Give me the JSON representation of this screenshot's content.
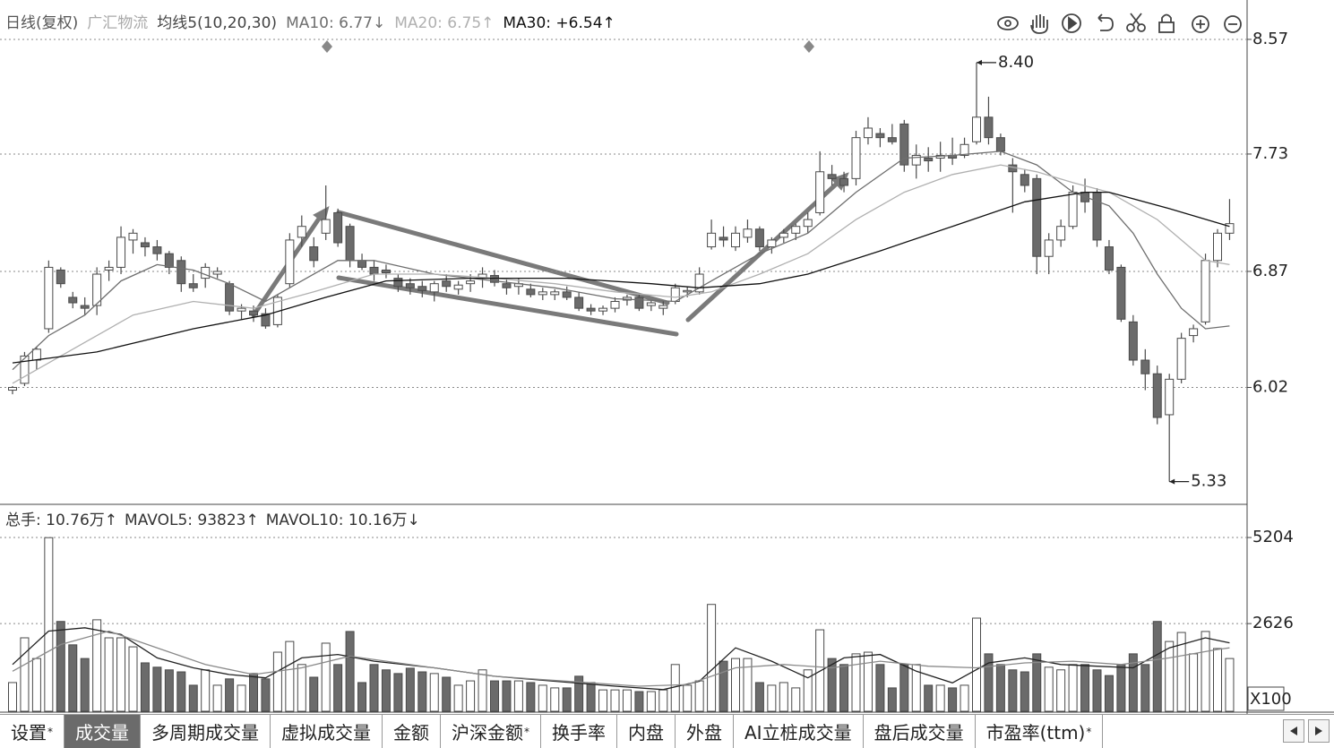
{
  "chart_data": [
    {
      "type": "candlestick",
      "title": "日线(复权)",
      "subtitle": "广汇物流",
      "ma_label": "均线5(10,20,30)",
      "open": [
        6.0,
        6.05,
        6.22,
        6.45,
        6.88,
        6.68,
        6.62,
        6.62,
        6.88,
        6.9,
        7.1,
        7.08,
        7.05,
        7.0,
        6.95,
        6.78,
        6.82,
        6.85,
        6.78,
        6.58,
        6.58,
        6.56,
        6.48,
        6.78,
        7.12,
        7.05,
        7.15,
        7.3,
        7.2,
        6.95,
        6.9,
        6.88,
        6.82,
        6.78,
        6.76,
        6.72,
        6.8,
        6.74,
        6.78,
        6.82,
        6.84,
        6.78,
        6.76,
        6.74,
        6.7,
        6.7,
        6.72,
        6.68,
        6.6,
        6.58,
        6.6,
        6.66,
        6.68,
        6.62,
        6.6,
        6.65,
        6.72,
        6.72,
        7.05,
        7.12,
        7.05,
        7.12,
        7.18,
        7.05,
        7.12,
        7.15,
        7.2,
        7.3,
        7.58,
        7.55,
        7.55,
        7.85,
        7.88,
        7.85,
        7.95,
        7.65,
        7.7,
        7.7,
        7.72,
        7.72,
        7.82,
        8.0,
        7.85,
        7.65,
        7.58,
        7.55,
        6.98,
        7.1,
        7.2,
        7.45,
        7.45,
        7.05,
        6.9,
        6.5,
        6.22,
        6.12,
        5.82,
        6.08,
        6.4,
        6.5,
        6.95,
        7.15
      ],
      "high": [
        6.03,
        6.28,
        6.32,
        6.95,
        6.9,
        6.72,
        6.68,
        6.9,
        6.95,
        7.2,
        7.18,
        7.12,
        7.1,
        7.02,
        6.98,
        6.85,
        6.93,
        6.9,
        6.8,
        6.63,
        6.62,
        6.6,
        6.7,
        7.15,
        7.28,
        7.12,
        7.5,
        7.33,
        7.22,
        7.0,
        6.95,
        6.92,
        6.85,
        6.82,
        6.8,
        6.8,
        6.85,
        6.8,
        6.85,
        6.9,
        6.88,
        6.82,
        6.82,
        6.78,
        6.75,
        6.74,
        6.76,
        6.72,
        6.63,
        6.62,
        6.68,
        6.7,
        6.7,
        6.66,
        6.65,
        6.78,
        6.76,
        6.9,
        7.25,
        7.2,
        7.2,
        7.25,
        7.2,
        7.12,
        7.18,
        7.22,
        7.3,
        7.75,
        7.65,
        7.6,
        7.9,
        8.0,
        7.92,
        7.95,
        7.98,
        7.8,
        7.78,
        7.82,
        7.85,
        7.85,
        8.4,
        8.15,
        7.88,
        7.7,
        7.62,
        7.58,
        7.15,
        7.25,
        7.5,
        7.55,
        7.48,
        7.1,
        6.92,
        6.55,
        6.3,
        6.18,
        6.12,
        6.42,
        6.48,
        7.0,
        7.18,
        7.4
      ],
      "low": [
        5.97,
        6.03,
        6.15,
        6.42,
        6.75,
        6.6,
        6.55,
        6.55,
        6.8,
        6.85,
        7.0,
        6.98,
        6.95,
        6.85,
        6.72,
        6.72,
        6.75,
        6.82,
        6.55,
        6.52,
        6.5,
        6.45,
        6.46,
        6.75,
        7.05,
        6.9,
        7.1,
        7.05,
        6.9,
        6.88,
        6.8,
        6.82,
        6.72,
        6.7,
        6.68,
        6.65,
        6.72,
        6.7,
        6.72,
        6.75,
        6.76,
        6.7,
        6.7,
        6.68,
        6.66,
        6.66,
        6.66,
        6.58,
        6.55,
        6.55,
        6.57,
        6.62,
        6.58,
        6.58,
        6.55,
        6.63,
        6.68,
        6.7,
        7.03,
        7.05,
        7.02,
        7.08,
        7.02,
        7.0,
        7.08,
        7.1,
        7.15,
        7.28,
        7.5,
        7.45,
        7.5,
        7.8,
        7.78,
        7.8,
        7.6,
        7.55,
        7.6,
        7.6,
        7.65,
        7.7,
        7.8,
        7.8,
        7.72,
        7.3,
        7.45,
        6.85,
        6.85,
        7.05,
        7.18,
        7.3,
        7.05,
        6.85,
        6.5,
        6.18,
        6.0,
        5.75,
        5.33,
        6.05,
        6.35,
        6.48,
        6.9,
        7.1
      ],
      "close": [
        6.02,
        6.25,
        6.3,
        6.9,
        6.78,
        6.64,
        6.6,
        6.85,
        6.9,
        7.12,
        7.15,
        7.05,
        7.0,
        6.9,
        6.78,
        6.75,
        6.9,
        6.87,
        6.58,
        6.6,
        6.55,
        6.47,
        6.68,
        7.1,
        7.2,
        6.95,
        7.25,
        7.08,
        6.95,
        6.9,
        6.85,
        6.86,
        6.76,
        6.75,
        6.73,
        6.78,
        6.76,
        6.77,
        6.8,
        6.85,
        6.79,
        6.75,
        6.78,
        6.7,
        6.72,
        6.72,
        6.68,
        6.6,
        6.58,
        6.6,
        6.65,
        6.68,
        6.6,
        6.64,
        6.62,
        6.75,
        6.73,
        6.85,
        7.15,
        7.1,
        7.15,
        7.18,
        7.05,
        7.1,
        7.15,
        7.2,
        7.25,
        7.6,
        7.55,
        7.5,
        7.85,
        7.92,
        7.85,
        7.82,
        7.65,
        7.72,
        7.68,
        7.72,
        7.7,
        7.8,
        8.0,
        7.85,
        7.75,
        7.6,
        7.5,
        6.98,
        7.1,
        7.2,
        7.45,
        7.38,
        7.1,
        6.88,
        6.52,
        6.22,
        6.12,
        5.8,
        6.08,
        6.38,
        6.45,
        6.95,
        7.15,
        7.22
      ],
      "up_color": "#ffffff",
      "down_color": "#6b6b6b",
      "edge_color": "#4a4a4a",
      "ylim": [
        5.17,
        8.806
      ],
      "yticks": [
        6.02,
        6.87,
        7.73,
        8.57
      ],
      "grid": true,
      "series": [
        {
          "name": "MA10: 6.77↓",
          "color": "#6e6e6e",
          "x": [
            0,
            3,
            6,
            9,
            12,
            15,
            18,
            21,
            24,
            27,
            30,
            35,
            40,
            45,
            50,
            55,
            58,
            62,
            66,
            70,
            74,
            78,
            82,
            85,
            88,
            91,
            93,
            95,
            97,
            99,
            101
          ],
          "values": [
            6.15,
            6.4,
            6.55,
            6.8,
            6.92,
            6.88,
            6.78,
            6.65,
            6.8,
            6.95,
            6.95,
            6.85,
            6.8,
            6.75,
            6.67,
            6.65,
            6.8,
            7.0,
            7.15,
            7.45,
            7.7,
            7.72,
            7.75,
            7.65,
            7.45,
            7.35,
            7.15,
            6.85,
            6.6,
            6.45,
            6.47
          ]
        },
        {
          "name": "MA20: 6.75↑",
          "color": "#b0b0b0",
          "x": [
            0,
            5,
            10,
            15,
            20,
            25,
            30,
            35,
            40,
            45,
            50,
            55,
            58,
            62,
            66,
            70,
            74,
            78,
            82,
            85,
            88,
            91,
            93,
            95,
            97,
            99,
            101
          ],
          "values": [
            6.05,
            6.3,
            6.55,
            6.65,
            6.6,
            6.72,
            6.85,
            6.85,
            6.82,
            6.78,
            6.72,
            6.68,
            6.72,
            6.85,
            7.0,
            7.25,
            7.45,
            7.58,
            7.65,
            7.6,
            7.52,
            7.45,
            7.35,
            7.25,
            7.1,
            6.95,
            6.92
          ]
        },
        {
          "name": "MA30: +6.54↑",
          "color": "#111111",
          "x": [
            0,
            7,
            15,
            21,
            26,
            31,
            38,
            46,
            53,
            57,
            62,
            66,
            72,
            78,
            84,
            89,
            91,
            96,
            101
          ],
          "values": [
            6.2,
            6.28,
            6.45,
            6.55,
            6.68,
            6.8,
            6.82,
            6.82,
            6.78,
            6.75,
            6.78,
            6.85,
            7.02,
            7.2,
            7.38,
            7.45,
            7.45,
            7.33,
            7.2
          ]
        }
      ],
      "annotations": [
        {
          "value": 8.4,
          "label": "8.40"
        },
        {
          "value": 5.33,
          "label": "5.33"
        }
      ]
    },
    {
      "type": "bar",
      "y_unit": "X100",
      "ylim": [
        0,
        6144
      ],
      "yticks": [
        2626,
        5204
      ],
      "grid": true,
      "series": [
        {
          "name": "总手: 10.76万↑",
          "values": [
            860,
            2200,
            1580,
            5200,
            2690,
            1990,
            1580,
            2740,
            2200,
            2200,
            1930,
            1450,
            1320,
            1240,
            1180,
            780,
            1240,
            780,
            970,
            780,
            1130,
            970,
            1770,
            2090,
            1400,
            1020,
            2040,
            1400,
            2390,
            860,
            1400,
            1240,
            1130,
            1290,
            1180,
            1130,
            1020,
            780,
            910,
            1240,
            910,
            910,
            910,
            860,
            780,
            700,
            700,
            1050,
            860,
            640,
            640,
            640,
            590,
            590,
            640,
            1400,
            780,
            910,
            3200,
            1500,
            1580,
            1580,
            860,
            780,
            860,
            700,
            1240,
            2440,
            1580,
            1400,
            1720,
            1770,
            1400,
            700,
            1400,
            1400,
            780,
            780,
            700,
            780,
            2790,
            1720,
            1400,
            1240,
            1180,
            1720,
            1320,
            1240,
            1400,
            1400,
            1240,
            1070,
            1400,
            1720,
            1400,
            2690,
            2090,
            2360,
            1720,
            2390,
            1880,
            1580
          ]
        },
        {
          "name": "MAVOL5: 93823↑",
          "color": "#222222",
          "x": [
            0,
            3,
            6,
            9,
            12,
            15,
            18,
            21,
            24,
            27,
            30,
            35,
            40,
            45,
            50,
            54,
            57,
            60,
            63,
            66,
            69,
            72,
            75,
            78,
            81,
            84,
            87,
            90,
            93,
            96,
            99,
            101
          ],
          "values": [
            1400,
            2400,
            2500,
            2300,
            1600,
            1300,
            1100,
            1000,
            1600,
            1700,
            1500,
            1300,
            1050,
            900,
            750,
            650,
            900,
            1900,
            1500,
            1000,
            1600,
            1700,
            1200,
            850,
            1450,
            1600,
            1400,
            1350,
            1300,
            1900,
            2200,
            2050
          ]
        },
        {
          "name": "MAVOL10: 10.16万↓",
          "color": "#8a8a8a",
          "x": [
            0,
            4,
            8,
            12,
            16,
            20,
            24,
            28,
            32,
            36,
            40,
            44,
            48,
            52,
            56,
            60,
            64,
            68,
            72,
            76,
            80,
            84,
            88,
            92,
            96,
            100,
            101
          ],
          "values": [
            1200,
            2000,
            2400,
            1900,
            1400,
            1100,
            1300,
            1650,
            1450,
            1250,
            1050,
            950,
            850,
            750,
            800,
            1300,
            1400,
            1300,
            1500,
            1350,
            1300,
            1450,
            1500,
            1400,
            1600,
            1850,
            1900
          ]
        }
      ]
    }
  ],
  "tabs": [
    {
      "label": "设置",
      "badge": "*"
    },
    {
      "label": "成交量"
    },
    {
      "label": "多周期成交量"
    },
    {
      "label": "虚拟成交量"
    },
    {
      "label": "金额"
    },
    {
      "label": "沪深金额",
      "badge": "*"
    },
    {
      "label": "换手率"
    },
    {
      "label": "内盘"
    },
    {
      "label": "外盘"
    },
    {
      "label": "AI立桩成交量"
    },
    {
      "label": "盘后成交量"
    },
    {
      "label": "市盈率(ttm)",
      "badge": "*"
    }
  ],
  "active_tab": 1
}
